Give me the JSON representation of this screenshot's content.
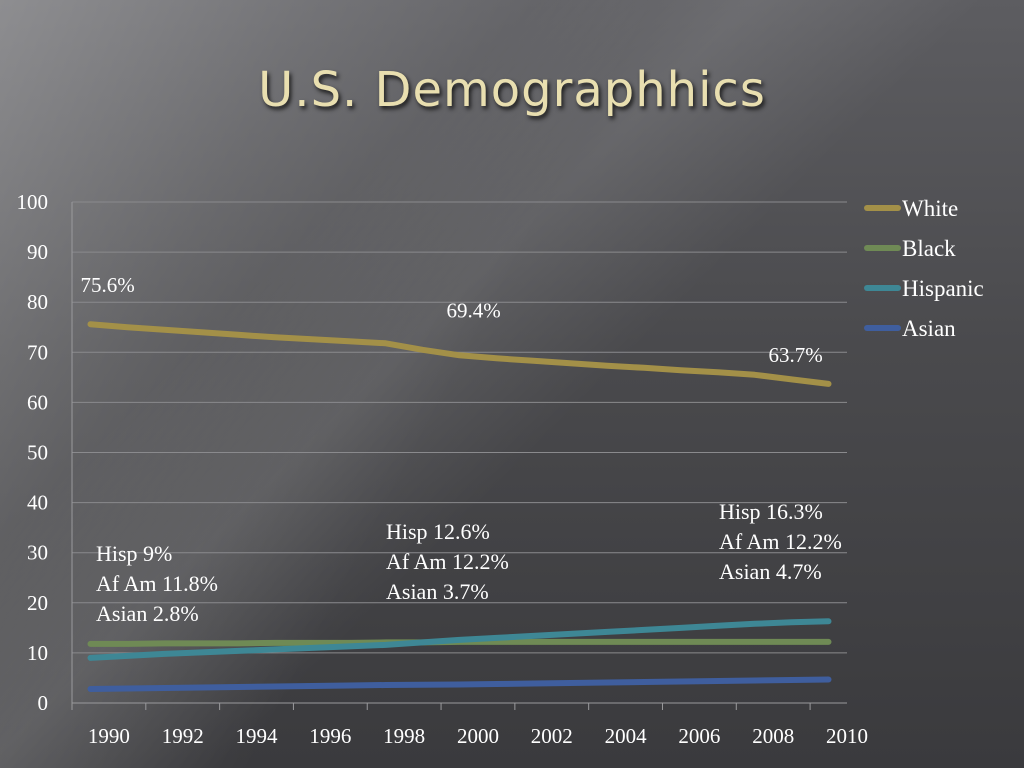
{
  "slide": {
    "title": "U.S. Demographhics"
  },
  "chart_data": {
    "type": "line",
    "x": [
      1990,
      1991,
      1992,
      1993,
      1994,
      1995,
      1996,
      1997,
      1998,
      1999,
      2000,
      2001,
      2002,
      2003,
      2004,
      2005,
      2006,
      2007,
      2008,
      2009,
      2010
    ],
    "x_tick_labels": [
      "1990",
      "1992",
      "1994",
      "1996",
      "1998",
      "2000",
      "2002",
      "2004",
      "2006",
      "2008",
      "2010"
    ],
    "ylim": [
      0,
      100
    ],
    "y_ticks": [
      0,
      10,
      20,
      30,
      40,
      50,
      60,
      70,
      80,
      90,
      100
    ],
    "grid": true,
    "legend_position": "right",
    "series": [
      {
        "name": "White",
        "color": "#a39048",
        "values": [
          75.6,
          75.0,
          74.5,
          74.0,
          73.5,
          73.0,
          72.6,
          72.2,
          71.8,
          70.5,
          69.4,
          68.8,
          68.3,
          67.8,
          67.3,
          66.9,
          66.4,
          66.0,
          65.5,
          64.6,
          63.7
        ]
      },
      {
        "name": "Black",
        "color": "#6f8a55",
        "values": [
          11.8,
          11.8,
          11.9,
          11.9,
          11.9,
          12.0,
          12.0,
          12.0,
          12.1,
          12.1,
          12.2,
          12.2,
          12.2,
          12.2,
          12.2,
          12.2,
          12.2,
          12.2,
          12.2,
          12.2,
          12.2
        ]
      },
      {
        "name": "Hispanic",
        "color": "#3e8795",
        "values": [
          9.0,
          9.4,
          9.8,
          10.1,
          10.4,
          10.7,
          11.0,
          11.3,
          11.6,
          12.1,
          12.6,
          13.0,
          13.4,
          13.8,
          14.2,
          14.6,
          15.0,
          15.4,
          15.8,
          16.1,
          16.3
        ]
      },
      {
        "name": "Asian",
        "color": "#3f5e9e",
        "values": [
          2.8,
          2.9,
          3.0,
          3.1,
          3.2,
          3.3,
          3.4,
          3.5,
          3.6,
          3.65,
          3.7,
          3.8,
          3.9,
          4.0,
          4.1,
          4.2,
          4.3,
          4.4,
          4.5,
          4.6,
          4.7
        ]
      }
    ],
    "data_labels": [
      {
        "text": "75.6%",
        "series": "White",
        "x": 1990
      },
      {
        "text": "69.4%",
        "series": "White",
        "x": 2000
      },
      {
        "text": "63.7%",
        "series": "White",
        "x": 2010
      }
    ],
    "annotations": [
      {
        "x": 1990,
        "lines": [
          "Hisp 9%",
          "Af Am 11.8%",
          "Asian 2.8%"
        ]
      },
      {
        "x": 2000,
        "lines": [
          "Hisp 12.6%",
          "Af Am 12.2%",
          "Asian 3.7%"
        ]
      },
      {
        "x": 2010,
        "lines": [
          "Hisp 16.3%",
          "Af Am 12.2%",
          "Asian 4.7%"
        ]
      }
    ]
  }
}
